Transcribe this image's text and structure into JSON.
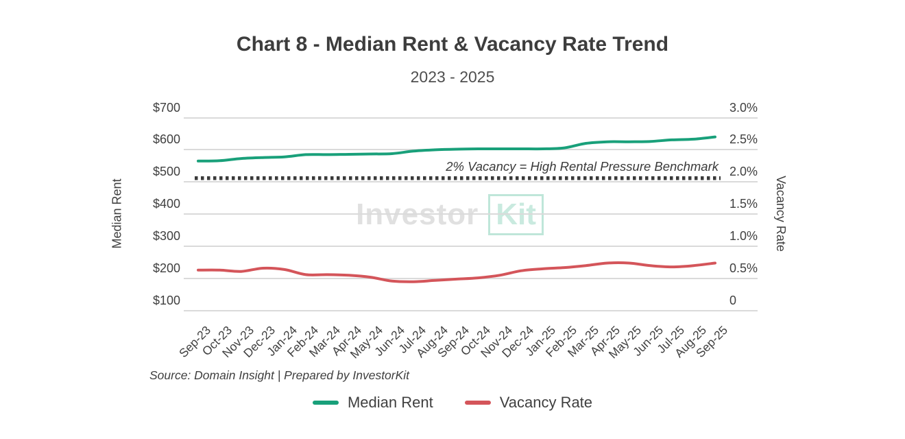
{
  "header": {
    "title": "Chart 8 - Median Rent & Vacancy Rate Trend",
    "subtitle": "2023 - 2025"
  },
  "chart_data": {
    "type": "line",
    "title": "Chart 8 - Median Rent & Vacancy Rate Trend",
    "subtitle": "2023 - 2025",
    "categories": [
      "Sep-23",
      "Oct-23",
      "Nov-23",
      "Dec-23",
      "Jan-24",
      "Feb-24",
      "Mar-24",
      "Apr-24",
      "May-24",
      "Jun-24",
      "Jul-24",
      "Aug-24",
      "Sep-24",
      "Oct-24",
      "Nov-24",
      "Dec-24",
      "Jan-25",
      "Feb-25",
      "Mar-25",
      "Apr-25",
      "May-25",
      "Jun-25",
      "Jul-25",
      "Aug-25",
      "Sep-25"
    ],
    "series": [
      {
        "name": "Median Rent",
        "axis": "left",
        "color": "#19a07a",
        "values": [
          565,
          566,
          573,
          576,
          578,
          585,
          585,
          586,
          587,
          588,
          596,
          600,
          602,
          603,
          603,
          603,
          603,
          606,
          620,
          625,
          625,
          626,
          631,
          633,
          640
        ]
      },
      {
        "name": "Vacancy Rate",
        "axis": "right",
        "color": "#d4555a",
        "values": [
          0.63,
          0.63,
          0.61,
          0.66,
          0.64,
          0.56,
          0.56,
          0.55,
          0.52,
          0.46,
          0.45,
          0.47,
          0.49,
          0.51,
          0.55,
          0.62,
          0.65,
          0.67,
          0.7,
          0.74,
          0.74,
          0.7,
          0.68,
          0.7,
          0.74
        ]
      }
    ],
    "left_axis": {
      "label": "Median Rent",
      "ticks": [
        "$700",
        "$600",
        "$500",
        "$400",
        "$300",
        "$200",
        "$100"
      ],
      "min": 100,
      "max": 700
    },
    "right_axis": {
      "label": "Vacancy Rate",
      "ticks": [
        "3.0%",
        "2.5%",
        "2.0%",
        "1.5%",
        "1.0%",
        "0.5%",
        "0"
      ],
      "min": 0,
      "max": 3.0
    },
    "benchmark": {
      "value": 2.0,
      "label": "2% Vacancy = High Rental Pressure Benchmark",
      "style": "dotted",
      "color": "#3b3b3b"
    },
    "grid": true,
    "legend_position": "bottom"
  },
  "watermark": {
    "part1": "Investor",
    "part2": "Kit"
  },
  "footer": {
    "source": "Source: Domain Insight | Prepared by InvestorKit"
  },
  "legend": {
    "items": [
      {
        "label": "Median Rent",
        "color": "#19a07a"
      },
      {
        "label": "Vacancy Rate",
        "color": "#d4555a"
      }
    ]
  },
  "colors": {
    "rent_line": "#19a07a",
    "vacancy_line": "#d4555a",
    "gridline": "#dadada",
    "benchmark": "#3b3b3b",
    "text": "#3f3f3f"
  }
}
